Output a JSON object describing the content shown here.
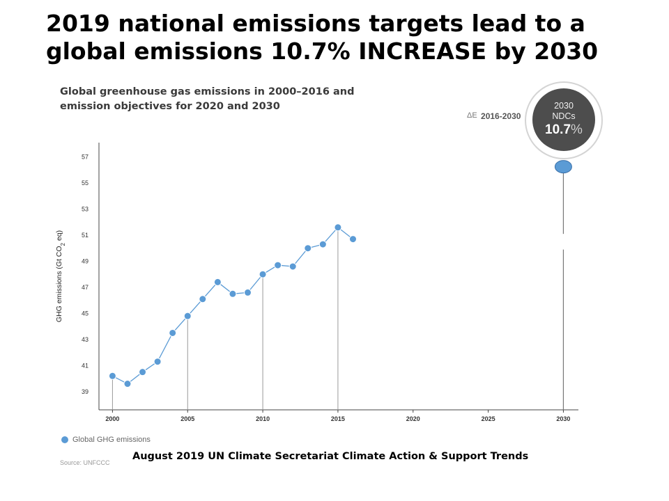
{
  "slide_title": {
    "line1": "2019 national emissions targets lead to a",
    "line2": "global emissions 10.7% INCREASE by 2030"
  },
  "caption": "August 2019 UN Climate Secretariat Climate Action & Support Trends",
  "badge": {
    "line1": "2030",
    "line2": "NDCs",
    "value": "10.7",
    "unit": "%",
    "delta_symbol": "ΔE",
    "delta_years": "2016-2030",
    "ring_color": "#d4d4d4",
    "fill_color": "#4d4d4d"
  },
  "source": "Source: UNFCCC",
  "chart_data": {
    "type": "line",
    "title_line1": "Global greenhouse gas emissions in 2000–2016 and",
    "title_line2": "emission objectives for 2020 and 2030",
    "ylabel": "GHG emissions (Gt CO",
    "ylabel_sub": "2",
    "ylabel_tail": " eq)",
    "xlim": [
      1999.1,
      2031
    ],
    "ylim": [
      37.6,
      58.1
    ],
    "x_ticks": [
      2000,
      2005,
      2010,
      2015,
      2020,
      2025,
      2030
    ],
    "y_ticks": [
      39,
      41,
      43,
      45,
      47,
      49,
      51,
      53,
      55,
      57
    ],
    "drop_lines_at": [
      2000,
      2005,
      2010,
      2015,
      2030
    ],
    "series": [
      {
        "name": "Global GHG emissions",
        "color": "#5b9bd5",
        "x": [
          2000,
          2001,
          2002,
          2003,
          2004,
          2005,
          2006,
          2007,
          2008,
          2009,
          2010,
          2011,
          2012,
          2013,
          2014,
          2015,
          2016
        ],
        "y": [
          40.2,
          39.6,
          40.5,
          41.3,
          43.5,
          44.8,
          46.1,
          47.4,
          46.5,
          46.6,
          48.0,
          48.7,
          48.6,
          50.0,
          50.3,
          51.6,
          50.7
        ]
      }
    ],
    "target_2030": {
      "x": 2030,
      "y": 56.2,
      "color": "#5b9bd5",
      "outline": "#3a6fa8"
    }
  }
}
